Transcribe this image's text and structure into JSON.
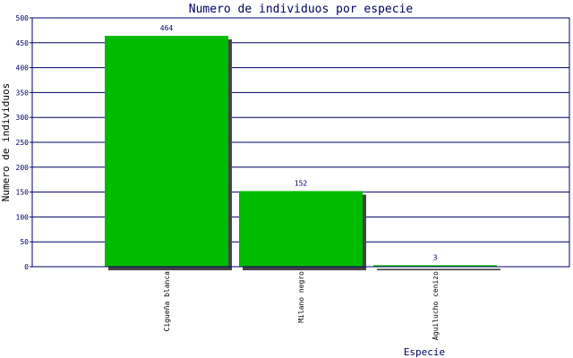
{
  "chart_data": {
    "type": "bar",
    "title": "Numero de individuos por especie",
    "xlabel": "Especie",
    "ylabel": "Numero de individuos",
    "categories": [
      "Cigueña blanca",
      "Milano negro",
      "Aguilucho cenizo"
    ],
    "values": [
      464,
      152,
      3
    ],
    "ylim": [
      0,
      500
    ],
    "yticks": [
      0,
      50,
      100,
      150,
      200,
      250,
      300,
      350,
      400,
      450,
      500
    ],
    "data_labels": [
      "464",
      "152",
      "3"
    ],
    "grid": true,
    "legend": "none",
    "colors": {
      "bar": "#00bb00",
      "bar_shadow": "#444444",
      "axis": "#000066",
      "grid": "#000066",
      "text": "#000066",
      "background": "#ffffff"
    }
  }
}
